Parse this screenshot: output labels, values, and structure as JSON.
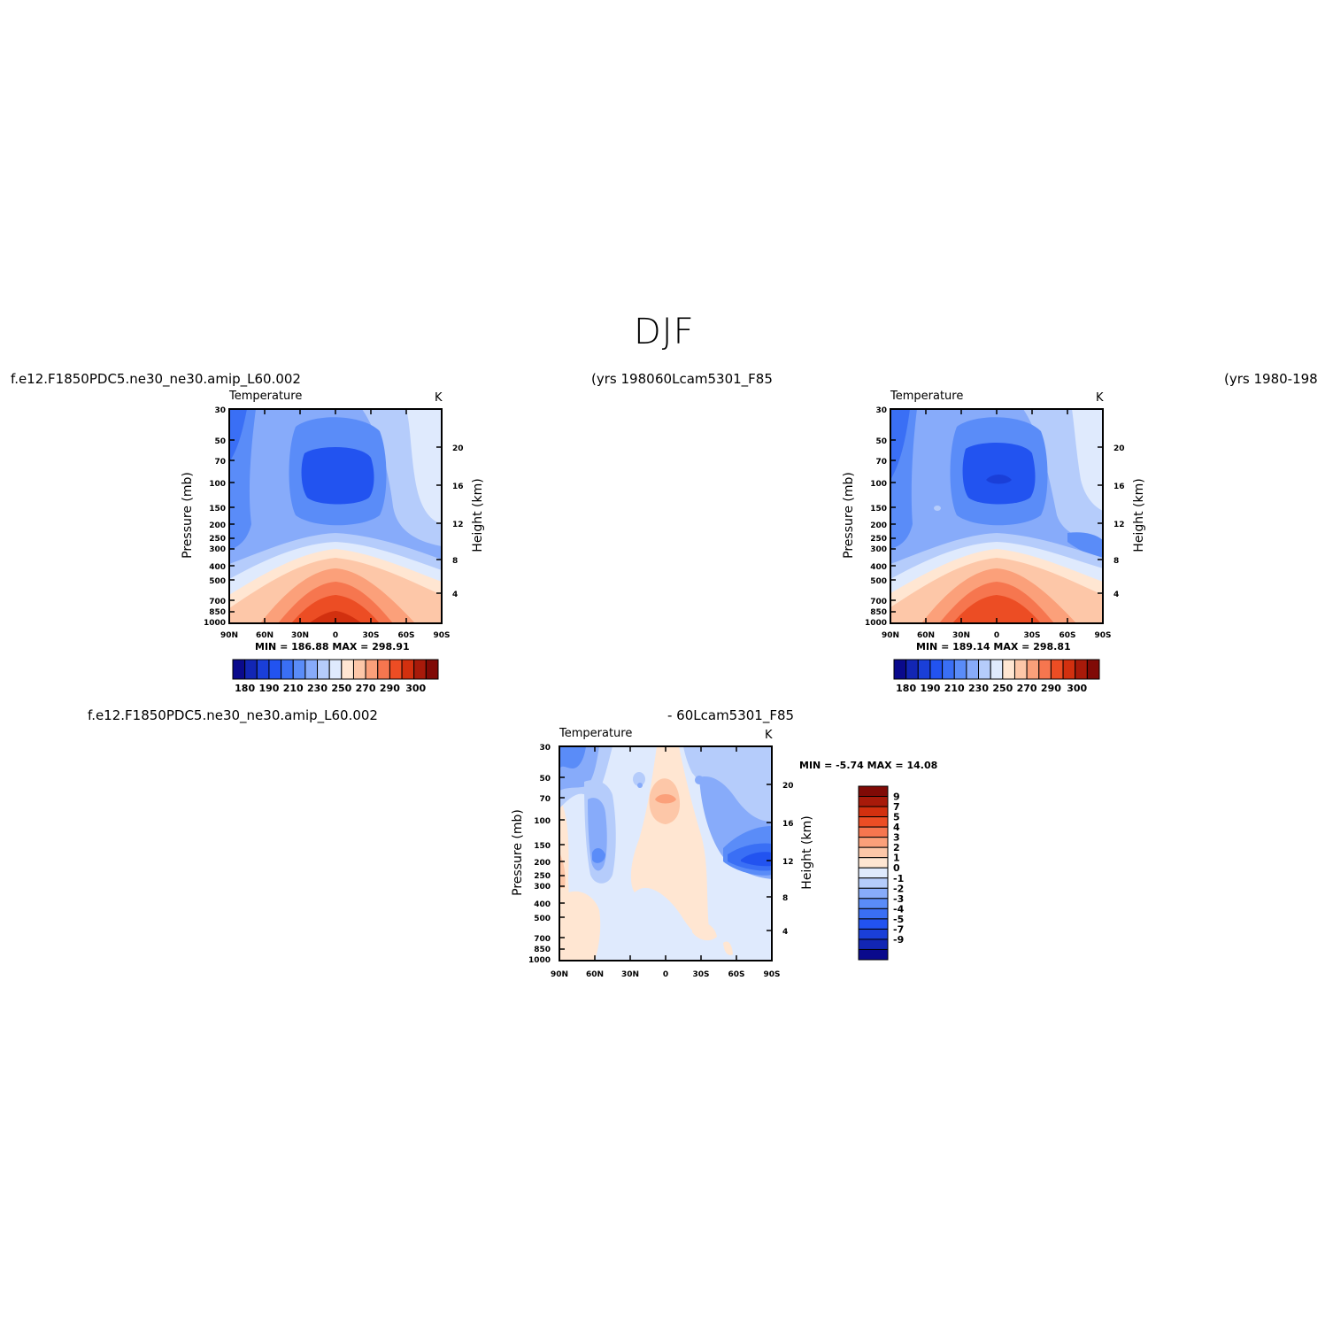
{
  "title": "DJF",
  "panels": [
    {
      "run_title": "f.e12.F1850PDC5.ne30_ne30.amip_L60.002",
      "years": "(yrs  1980",
      "variable": "Temperature",
      "units": "K",
      "y_axis_left": "Pressure  (mb)",
      "y_axis_right": "Height  (km)",
      "minmax": "MIN =  186.88   MAX =  298.91"
    },
    {
      "run_title": "60Lcam5301_F85",
      "years": "(yrs  1980-198",
      "variable": "Temperature",
      "units": "K",
      "y_axis_left": "Pressure  (mb)",
      "y_axis_right": "Height  (km)",
      "minmax": "MIN =  189.14   MAX =  298.81"
    },
    {
      "run_title_a": "f.e12.F1850PDC5.ne30_ne30.amip_L60.002",
      "run_title_b": "-  60Lcam5301_F85",
      "variable": "Temperature",
      "units": "K",
      "y_axis_left": "Pressure  (mb)",
      "y_axis_right": "Height  (km)",
      "minmax": "MIN =   -5.74   MAX =   14.08"
    }
  ],
  "chart_data": [
    {
      "type": "heatmap",
      "title": "Temperature",
      "units": "K",
      "xlabel": "",
      "ylabel": "Pressure  (mb)",
      "ylabel_right": "Height  (km)",
      "x_ticks": [
        "90N",
        "60N",
        "30N",
        "0",
        "30S",
        "60S",
        "90S"
      ],
      "y_ticks": [
        "30",
        "50",
        "70",
        "100",
        "150",
        "200",
        "250",
        "300",
        "400",
        "500",
        "700",
        "850",
        "1000"
      ],
      "y_ticks_right": [
        "20",
        "16",
        "12",
        "8",
        "4"
      ],
      "levels": [
        180,
        190,
        200,
        210,
        220,
        230,
        240,
        250,
        260,
        270,
        280,
        290,
        300
      ],
      "colorbar_labels": [
        "180",
        "190",
        "210",
        "230",
        "250",
        "270",
        "290",
        "300"
      ],
      "min": 186.88,
      "max": 298.91
    },
    {
      "type": "heatmap",
      "title": "Temperature",
      "units": "K",
      "xlabel": "",
      "ylabel": "Pressure  (mb)",
      "ylabel_right": "Height  (km)",
      "x_ticks": [
        "90N",
        "60N",
        "30N",
        "0",
        "30S",
        "60S",
        "90S"
      ],
      "y_ticks": [
        "30",
        "50",
        "70",
        "100",
        "150",
        "200",
        "250",
        "300",
        "400",
        "500",
        "700",
        "850",
        "1000"
      ],
      "y_ticks_right": [
        "20",
        "16",
        "12",
        "8",
        "4"
      ],
      "levels": [
        180,
        190,
        200,
        210,
        220,
        230,
        240,
        250,
        260,
        270,
        280,
        290,
        300
      ],
      "colorbar_labels": [
        "180",
        "190",
        "210",
        "230",
        "250",
        "270",
        "290",
        "300"
      ],
      "min": 189.14,
      "max": 298.81
    },
    {
      "type": "heatmap",
      "title": "Temperature",
      "units": "K",
      "xlabel": "",
      "ylabel": "Pressure  (mb)",
      "ylabel_right": "Height  (km)",
      "x_ticks": [
        "90N",
        "60N",
        "30N",
        "0",
        "30S",
        "60S",
        "90S"
      ],
      "y_ticks": [
        "30",
        "50",
        "70",
        "100",
        "150",
        "200",
        "250",
        "300",
        "400",
        "500",
        "700",
        "850",
        "1000"
      ],
      "y_ticks_right": [
        "20",
        "16",
        "12",
        "8",
        "4"
      ],
      "levels": [
        -9,
        -7,
        -5,
        -4,
        -3,
        -2,
        -1,
        0,
        1,
        2,
        3,
        4,
        5,
        7,
        9
      ],
      "colorbar_labels": [
        "9",
        "7",
        "5",
        "4",
        "3",
        "2",
        "1",
        "0",
        "-1",
        "-2",
        "-3",
        "-4",
        "-5",
        "-7",
        "-9"
      ],
      "min": -5.74,
      "max": 14.08
    }
  ],
  "colors": {
    "temp_scale": [
      "#0a0a8c",
      "#1226b4",
      "#1a3fd8",
      "#2253f0",
      "#3a6ff5",
      "#5a8cf8",
      "#87abfa",
      "#b5ccfb",
      "#dfeafd",
      "#ffe6d2",
      "#fdc7a8",
      "#fba07a",
      "#f6764f",
      "#ec4d24",
      "#d2300f",
      "#a81a0a",
      "#800a06"
    ],
    "diff_scale": [
      "#800a06",
      "#a81a0a",
      "#d2300f",
      "#ec4d24",
      "#f6764f",
      "#fba07a",
      "#fdc7a8",
      "#ffe6d2",
      "#dfeafd",
      "#b5ccfb",
      "#87abfa",
      "#5a8cf8",
      "#3a6ff5",
      "#2253f0",
      "#1a3fd8",
      "#1226b4",
      "#0a0a8c"
    ]
  }
}
